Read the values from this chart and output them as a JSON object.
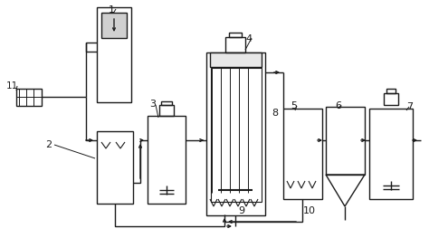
{
  "bg": "#ffffff",
  "lc": "#1a1a1a",
  "lw": 1.0,
  "fig_w": 4.74,
  "fig_h": 2.63,
  "dpi": 100
}
